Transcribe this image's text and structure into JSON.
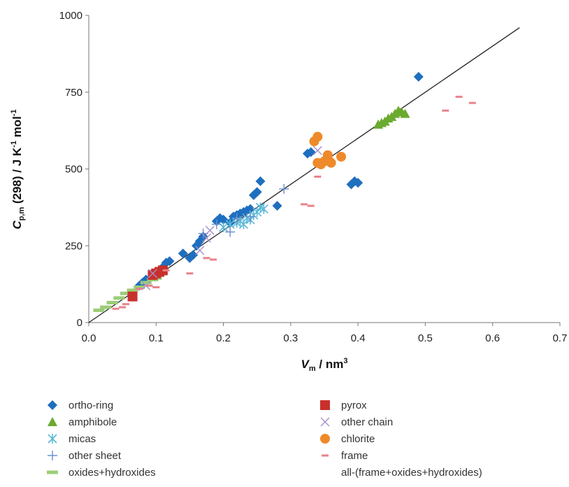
{
  "chart_data": {
    "type": "scatter",
    "xlim": [
      0.0,
      0.7
    ],
    "ylim": [
      0,
      1000
    ],
    "x_ticks": [
      "0.0",
      "0.1",
      "0.2",
      "0.3",
      "0.4",
      "0.5",
      "0.6",
      "0.7"
    ],
    "y_ticks": [
      "0",
      "250",
      "500",
      "750",
      "1000"
    ],
    "ylabel": {
      "main": "C",
      "sub": "p,m",
      "rest": " (298)  / J K",
      "sup1": "-1",
      "rest2": " mol",
      "sup2": "-1"
    },
    "xlabel": {
      "main": "V",
      "sub": "m",
      "rest": " / nm",
      "sup": "3"
    },
    "grid": false,
    "legend_position": "bottom",
    "fit_line": {
      "name": "all-(frame+oxides+hydroxides)",
      "x": [
        0.0,
        0.64
      ],
      "y": [
        0,
        960
      ],
      "color": "#222222"
    },
    "series": [
      {
        "name": "ortho-ring",
        "marker": "diamond",
        "color": "#1f6fbf",
        "points": [
          [
            0.075,
            120
          ],
          [
            0.08,
            130
          ],
          [
            0.085,
            140
          ],
          [
            0.1,
            160
          ],
          [
            0.11,
            180
          ],
          [
            0.115,
            195
          ],
          [
            0.12,
            200
          ],
          [
            0.14,
            225
          ],
          [
            0.15,
            210
          ],
          [
            0.155,
            220
          ],
          [
            0.16,
            250
          ],
          [
            0.165,
            265
          ],
          [
            0.17,
            280
          ],
          [
            0.19,
            330
          ],
          [
            0.195,
            340
          ],
          [
            0.2,
            335
          ],
          [
            0.21,
            325
          ],
          [
            0.215,
            345
          ],
          [
            0.22,
            350
          ],
          [
            0.225,
            355
          ],
          [
            0.23,
            360
          ],
          [
            0.235,
            365
          ],
          [
            0.24,
            370
          ],
          [
            0.245,
            415
          ],
          [
            0.25,
            425
          ],
          [
            0.255,
            460
          ],
          [
            0.28,
            380
          ],
          [
            0.325,
            550
          ],
          [
            0.33,
            555
          ],
          [
            0.39,
            450
          ],
          [
            0.395,
            460
          ],
          [
            0.4,
            455
          ],
          [
            0.49,
            800
          ]
        ]
      },
      {
        "name": "amphibole",
        "marker": "triangle",
        "color": "#6aaa2e",
        "points": [
          [
            0.43,
            645
          ],
          [
            0.435,
            650
          ],
          [
            0.44,
            655
          ],
          [
            0.445,
            665
          ],
          [
            0.45,
            670
          ],
          [
            0.455,
            680
          ],
          [
            0.46,
            690
          ],
          [
            0.465,
            685
          ],
          [
            0.47,
            680
          ]
        ]
      },
      {
        "name": "micas",
        "marker": "asterisk",
        "color": "#5ab8d6",
        "points": [
          [
            0.2,
            310
          ],
          [
            0.21,
            320
          ],
          [
            0.22,
            325
          ],
          [
            0.225,
            330
          ],
          [
            0.23,
            320
          ],
          [
            0.235,
            340
          ],
          [
            0.24,
            335
          ],
          [
            0.245,
            350
          ],
          [
            0.25,
            360
          ],
          [
            0.255,
            375
          ],
          [
            0.26,
            370
          ]
        ]
      },
      {
        "name": "other sheet",
        "marker": "plus",
        "color": "#6b8fd0",
        "points": [
          [
            0.17,
            290
          ],
          [
            0.19,
            320
          ],
          [
            0.21,
            295
          ],
          [
            0.22,
            340
          ],
          [
            0.24,
            345
          ],
          [
            0.29,
            435
          ]
        ]
      },
      {
        "name": "oxides+hydroxides",
        "marker": "dash-thick",
        "color": "#9ccd78",
        "points": [
          [
            0.015,
            40
          ],
          [
            0.025,
            50
          ],
          [
            0.035,
            65
          ],
          [
            0.045,
            80
          ],
          [
            0.055,
            95
          ],
          [
            0.065,
            105
          ],
          [
            0.075,
            115
          ],
          [
            0.085,
            130
          ],
          [
            0.095,
            140
          ],
          [
            0.1,
            145
          ]
        ]
      },
      {
        "name": "pyrox",
        "marker": "square",
        "color": "#c8302c",
        "points": [
          [
            0.065,
            85
          ],
          [
            0.095,
            155
          ],
          [
            0.1,
            160
          ],
          [
            0.105,
            165
          ],
          [
            0.11,
            170
          ]
        ]
      },
      {
        "name": "other chain",
        "marker": "cross",
        "color": "#a88ec9",
        "points": [
          [
            0.085,
            120
          ],
          [
            0.095,
            160
          ],
          [
            0.165,
            235
          ],
          [
            0.175,
            275
          ],
          [
            0.18,
            300
          ],
          [
            0.34,
            560
          ]
        ]
      },
      {
        "name": "chlorite",
        "marker": "circle",
        "color": "#ef8a2a",
        "points": [
          [
            0.335,
            590
          ],
          [
            0.34,
            605
          ],
          [
            0.34,
            520
          ],
          [
            0.345,
            515
          ],
          [
            0.35,
            525
          ],
          [
            0.355,
            535
          ],
          [
            0.36,
            520
          ],
          [
            0.355,
            545
          ],
          [
            0.375,
            540
          ]
        ]
      },
      {
        "name": "frame",
        "marker": "dash",
        "color": "#e8838a",
        "points": [
          [
            0.04,
            45
          ],
          [
            0.05,
            50
          ],
          [
            0.055,
            60
          ],
          [
            0.075,
            110
          ],
          [
            0.09,
            120
          ],
          [
            0.1,
            115
          ],
          [
            0.115,
            170
          ],
          [
            0.15,
            160
          ],
          [
            0.175,
            210
          ],
          [
            0.185,
            205
          ],
          [
            0.32,
            385
          ],
          [
            0.33,
            380
          ],
          [
            0.34,
            475
          ],
          [
            0.53,
            690
          ],
          [
            0.55,
            735
          ],
          [
            0.57,
            715
          ]
        ]
      }
    ],
    "legend": [
      {
        "label": "ortho-ring",
        "marker": "diamond",
        "color": "#1f6fbf"
      },
      {
        "label": "pyrox",
        "marker": "square",
        "color": "#c8302c"
      },
      {
        "label": "amphibole",
        "marker": "triangle",
        "color": "#6aaa2e"
      },
      {
        "label": "other chain",
        "marker": "cross",
        "color": "#a88ec9"
      },
      {
        "label": "micas",
        "marker": "asterisk",
        "color": "#5ab8d6"
      },
      {
        "label": "chlorite",
        "marker": "circle",
        "color": "#ef8a2a"
      },
      {
        "label": "other sheet",
        "marker": "plus",
        "color": "#6b8fd0"
      },
      {
        "label": "frame",
        "marker": "dash",
        "color": "#e8838a"
      },
      {
        "label": "oxides+hydroxides",
        "marker": "dash-thick",
        "color": "#9ccd78"
      },
      {
        "label": "all-(frame+oxides+hydroxides)",
        "marker": "none",
        "color": "#222222"
      }
    ]
  }
}
